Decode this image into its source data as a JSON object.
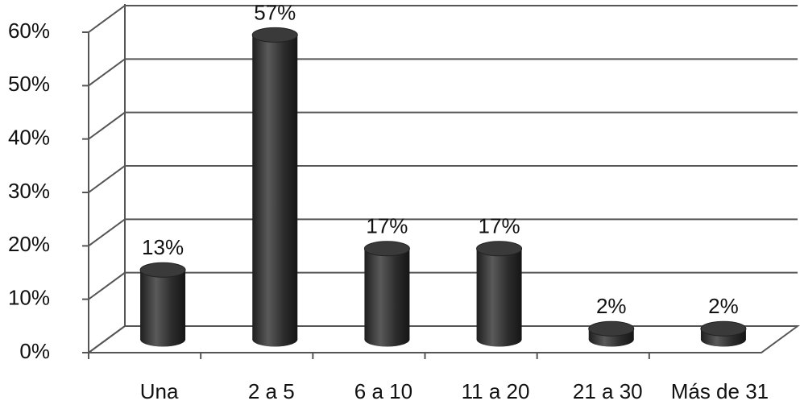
{
  "chart_data": {
    "type": "bar",
    "categories": [
      "Una",
      "2 a 5",
      "6 a 10",
      "11 a 20",
      "21 a 30",
      "Más de 31"
    ],
    "values": [
      13,
      57,
      17,
      17,
      2,
      2
    ],
    "value_labels": [
      "13%",
      "57%",
      "17%",
      "17%",
      "2%",
      "2%"
    ],
    "color": "#3a3a3a",
    "ylim": [
      0,
      60
    ],
    "yticks": [
      {
        "value": 0,
        "label": "0%"
      },
      {
        "value": 10,
        "label": "10%"
      },
      {
        "value": 20,
        "label": "20%"
      },
      {
        "value": 30,
        "label": "30%"
      },
      {
        "value": 40,
        "label": "40%"
      },
      {
        "value": 50,
        "label": "50%"
      },
      {
        "value": 60,
        "label": "60%"
      }
    ],
    "grid": true
  }
}
